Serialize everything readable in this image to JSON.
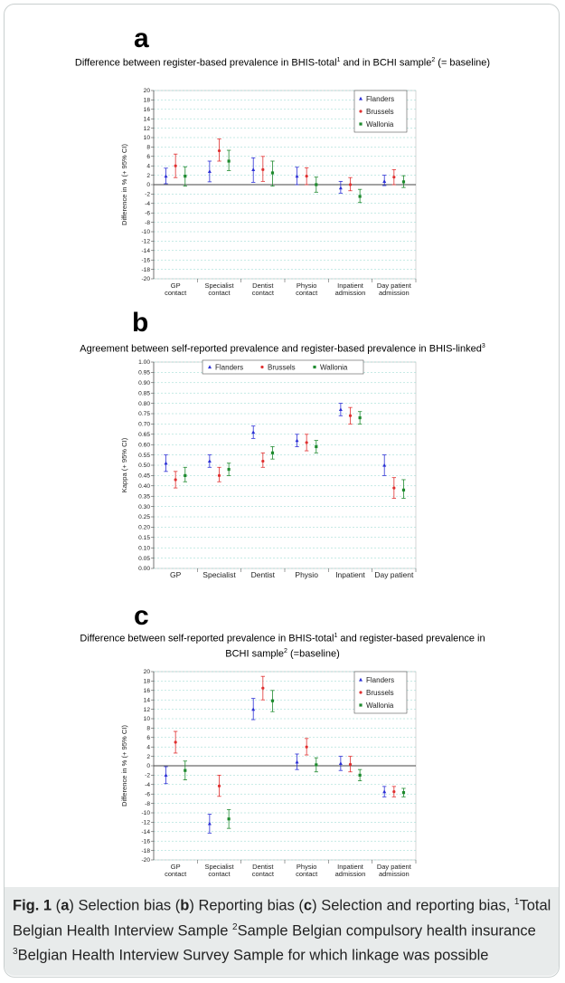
{
  "panels": [
    {
      "letter": "a",
      "title_parts": [
        "Difference between register-based prevalence in BHIS-total",
        "1",
        " and in BCHI sample",
        "2",
        " (= baseline)"
      ],
      "chart_data": {
        "type": "scatter",
        "ylabel": "Difference in % (+ 95% CI)",
        "ylim": [
          -20,
          20
        ],
        "ytick_step": 2,
        "categories": [
          [
            "GP",
            "contact"
          ],
          [
            "Specialist",
            "contact"
          ],
          [
            "Dentist",
            "contact"
          ],
          [
            "Physio",
            "contact"
          ],
          [
            "Inpatient",
            "admission"
          ],
          [
            "Day patient",
            "admission"
          ]
        ],
        "legend_position": "top-right",
        "grid": true,
        "series": [
          {
            "name": "Flanders",
            "color": "#2b2fd6",
            "marker": "triangle",
            "values": [
              1.8,
              2.8,
              3.2,
              1.8,
              -0.7,
              0.7
            ],
            "lower": [
              0.2,
              0.6,
              0.5,
              0.0,
              -1.8,
              -0.2
            ],
            "upper": [
              3.5,
              5.0,
              5.7,
              3.7,
              0.7,
              2.0
            ]
          },
          {
            "name": "Brussels",
            "color": "#e03030",
            "marker": "dot",
            "values": [
              4.0,
              7.2,
              3.2,
              1.8,
              0.0,
              1.6
            ],
            "lower": [
              1.5,
              5.0,
              0.7,
              0.0,
              -1.3,
              0.0
            ],
            "upper": [
              6.5,
              9.7,
              6.0,
              3.6,
              1.5,
              3.2
            ]
          },
          {
            "name": "Wallonia",
            "color": "#1e8a2e",
            "marker": "square",
            "values": [
              1.8,
              5.0,
              2.5,
              0.0,
              -2.5,
              0.6
            ],
            "lower": [
              -0.3,
              3.0,
              -0.3,
              -1.6,
              -3.8,
              -0.6
            ],
            "upper": [
              3.8,
              7.3,
              5.0,
              1.6,
              -1.0,
              1.9
            ]
          }
        ]
      }
    },
    {
      "letter": "b",
      "title_parts": [
        "Agreement between self-reported prevalence and register-based prevalence in BHIS-linked",
        "3",
        "",
        "",
        ""
      ],
      "chart_data": {
        "type": "scatter",
        "ylabel": "Kappa (+ 95% CI)",
        "ylim": [
          0,
          1
        ],
        "ytick_step": 0.05,
        "categories": [
          [
            "GP"
          ],
          [
            "Specialist"
          ],
          [
            "Dentist"
          ],
          [
            "Physio"
          ],
          [
            "Inpatient"
          ],
          [
            "Day patient"
          ]
        ],
        "legend_position": "top-center",
        "grid": true,
        "series": [
          {
            "name": "Flanders",
            "color": "#2b2fd6",
            "marker": "triangle",
            "values": [
              0.51,
              0.52,
              0.66,
              0.62,
              0.77,
              0.5
            ],
            "lower": [
              0.47,
              0.49,
              0.63,
              0.59,
              0.74,
              0.45
            ],
            "upper": [
              0.55,
              0.55,
              0.69,
              0.65,
              0.8,
              0.55
            ]
          },
          {
            "name": "Brussels",
            "color": "#e03030",
            "marker": "dot",
            "values": [
              0.43,
              0.45,
              0.52,
              0.61,
              0.74,
              0.39
            ],
            "lower": [
              0.39,
              0.42,
              0.49,
              0.57,
              0.7,
              0.34
            ],
            "upper": [
              0.47,
              0.49,
              0.56,
              0.65,
              0.78,
              0.44
            ]
          },
          {
            "name": "Wallonia",
            "color": "#1e8a2e",
            "marker": "square",
            "values": [
              0.45,
              0.48,
              0.56,
              0.59,
              0.73,
              0.38
            ],
            "lower": [
              0.42,
              0.45,
              0.53,
              0.56,
              0.7,
              0.34
            ],
            "upper": [
              0.49,
              0.51,
              0.59,
              0.62,
              0.76,
              0.43
            ]
          }
        ]
      }
    },
    {
      "letter": "c",
      "title_parts": [
        "Difference  between self-reported prevalence in BHIS-total",
        "1",
        " and register-based prevalence in",
        "",
        ""
      ],
      "title_line2_parts": [
        "BCHI sample",
        "2",
        " (=baseline)"
      ],
      "chart_data": {
        "type": "scatter",
        "ylabel": "Difference in % (+ 95% CI)",
        "ylim": [
          -20,
          20
        ],
        "ytick_step": 2,
        "categories": [
          [
            "GP",
            "contact"
          ],
          [
            "Specialist",
            "contact"
          ],
          [
            "Dentist",
            "contact"
          ],
          [
            "Physio",
            "contact"
          ],
          [
            "Inpatient",
            "admission"
          ],
          [
            "Day patient",
            "admission"
          ]
        ],
        "legend_position": "top-right",
        "grid": true,
        "series": [
          {
            "name": "Flanders",
            "color": "#2b2fd6",
            "marker": "triangle",
            "values": [
              -2.0,
              -12.3,
              12.0,
              0.8,
              0.5,
              -5.5
            ],
            "lower": [
              -3.8,
              -14.3,
              9.8,
              -0.8,
              -1.0,
              -6.6
            ],
            "upper": [
              -0.2,
              -10.3,
              14.3,
              2.5,
              2.0,
              -4.4
            ]
          },
          {
            "name": "Brussels",
            "color": "#e03030",
            "marker": "dot",
            "values": [
              5.0,
              -4.3,
              16.5,
              4.0,
              0.3,
              -5.5
            ],
            "lower": [
              2.7,
              -6.5,
              14.0,
              2.3,
              -1.3,
              -6.6
            ],
            "upper": [
              7.3,
              -2.0,
              19.0,
              5.8,
              2.0,
              -4.4
            ]
          },
          {
            "name": "Wallonia",
            "color": "#1e8a2e",
            "marker": "square",
            "values": [
              -1.0,
              -11.3,
              13.8,
              0.2,
              -2.0,
              -5.7
            ],
            "lower": [
              -3.0,
              -13.3,
              11.5,
              -1.3,
              -3.2,
              -6.6
            ],
            "upper": [
              1.0,
              -9.3,
              16.0,
              1.7,
              -0.8,
              -4.8
            ]
          }
        ]
      }
    }
  ],
  "caption": {
    "fig_label": "Fig. 1",
    "parts": [
      " (",
      "a",
      ") Selection bias (",
      "b",
      ") Reporting bias (",
      "c",
      ") Selection and reporting bias, "
    ],
    "footnotes": [
      {
        "mark": "1",
        "text": "Total Belgian Health Interview Sample "
      },
      {
        "mark": "2",
        "text": "Sample Belgian compulsory health insurance "
      },
      {
        "mark": "3",
        "text": "Belgian Health Interview Survey Sample for which linkage was possible"
      }
    ]
  }
}
